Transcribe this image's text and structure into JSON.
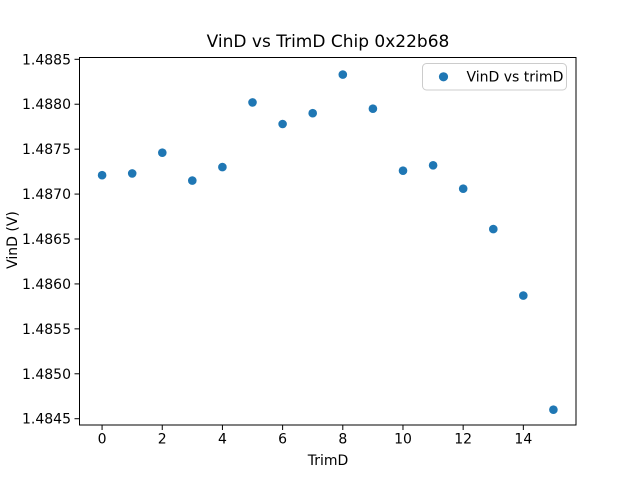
{
  "chart_data": {
    "type": "scatter",
    "title": "VinD vs TrimD Chip 0x22b68",
    "xlabel": "TrimD",
    "ylabel": "VinD (V)",
    "legend": {
      "label": "VinD vs trimD",
      "location": "upper right",
      "marker": "circle-icon"
    },
    "marker_color": "#1f77b4",
    "background_color": "#ffffff",
    "text_color": "#000000",
    "grid": false,
    "x": [
      0,
      1,
      2,
      3,
      4,
      5,
      6,
      7,
      8,
      9,
      10,
      11,
      12,
      13,
      14,
      15
    ],
    "y": [
      1.48721,
      1.48723,
      1.48746,
      1.48715,
      1.4873,
      1.48802,
      1.48778,
      1.4879,
      1.48833,
      1.48795,
      1.48726,
      1.48732,
      1.48706,
      1.48661,
      1.48587,
      1.4846
    ],
    "xlim": [
      -0.75,
      15.75
    ],
    "ylim": [
      1.48443,
      1.48852
    ],
    "xticks": [
      0,
      2,
      4,
      6,
      8,
      10,
      12,
      14
    ],
    "ytick_labels": [
      "1.4845",
      "1.4850",
      "1.4855",
      "1.4860",
      "1.4865",
      "1.4870",
      "1.4875",
      "1.4880",
      "1.4885"
    ]
  }
}
